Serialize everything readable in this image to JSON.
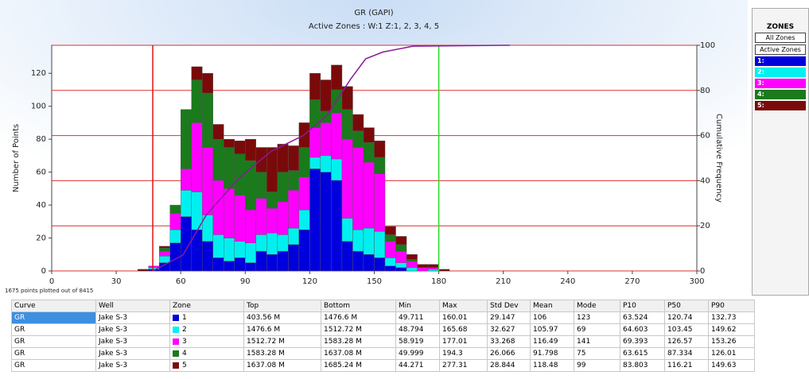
{
  "chart_data": {
    "type": "histogram",
    "title": "GR (GAPI)",
    "subtitle": "Active Zones :   W:1 Z:1, 2, 3, 4, 5",
    "y_label": "Number of Points",
    "y2_label": "Cumulative Frequency",
    "footnote": "1675 points plotted out of 8415",
    "bins": [
      40,
      45,
      50,
      55,
      60,
      65,
      70,
      75,
      80,
      85,
      90,
      95,
      100,
      105,
      110,
      115,
      120,
      125,
      130,
      135,
      140,
      145,
      150,
      155,
      160,
      165,
      170,
      175,
      180,
      185
    ],
    "series": [
      {
        "name": "1:",
        "color": "#0000dd",
        "values": [
          0,
          1,
          5,
          17,
          33,
          25,
          18,
          8,
          6,
          8,
          5,
          12,
          10,
          12,
          16,
          25,
          62,
          60,
          55,
          18,
          12,
          10,
          8,
          3,
          2,
          0,
          0,
          0,
          0
        ]
      },
      {
        "name": "2:",
        "color": "#00f0f0",
        "values": [
          0,
          1,
          4,
          8,
          16,
          23,
          16,
          14,
          14,
          10,
          12,
          10,
          13,
          10,
          10,
          12,
          7,
          10,
          13,
          14,
          13,
          16,
          16,
          5,
          3,
          2,
          0,
          1,
          0
        ]
      },
      {
        "name": "3:",
        "color": "#ff00ff",
        "values": [
          0,
          1,
          3,
          10,
          13,
          42,
          41,
          33,
          30,
          28,
          20,
          22,
          15,
          20,
          23,
          20,
          18,
          20,
          28,
          48,
          50,
          40,
          35,
          10,
          7,
          4,
          2,
          1,
          0
        ]
      },
      {
        "name": "4:",
        "color": "#1b7a1b",
        "values": [
          0,
          0,
          2,
          5,
          36,
          26,
          33,
          25,
          25,
          25,
          30,
          16,
          10,
          18,
          12,
          18,
          17,
          7,
          14,
          18,
          10,
          12,
          10,
          4,
          4,
          1,
          0,
          0,
          0
        ]
      },
      {
        "name": "5:",
        "color": "#7a0a0a",
        "values": [
          1,
          0,
          1,
          0,
          0,
          8,
          12,
          9,
          5,
          8,
          13,
          15,
          27,
          17,
          15,
          15,
          16,
          19,
          15,
          14,
          10,
          9,
          10,
          5,
          5,
          3,
          2,
          2,
          1
        ]
      }
    ],
    "cumulative": {
      "color": "#8b1a9b",
      "axis": "y2",
      "x": [
        47,
        61,
        72,
        87,
        102,
        117,
        128,
        139,
        146,
        154,
        168,
        213
      ],
      "values": [
        0,
        7,
        25,
        41,
        53,
        60,
        69,
        85,
        94,
        97,
        99.6,
        100
      ]
    },
    "cutoffs": [
      {
        "x": 47,
        "color": "#dd1111"
      },
      {
        "x": 180,
        "color": "#22dd22"
      }
    ],
    "xlim": [
      0,
      300
    ],
    "xticks": [
      0,
      30,
      60,
      90,
      120,
      150,
      180,
      210,
      240,
      270,
      300
    ],
    "ylim": [
      0,
      137
    ],
    "yticks": [
      0,
      20,
      40,
      60,
      80,
      100,
      120
    ],
    "y2lim": [
      0,
      100
    ],
    "y2ticks": [
      0,
      20,
      40,
      60,
      80,
      100
    ],
    "grid_color": "#e03030"
  },
  "zones_panel": {
    "title": "ZONES",
    "buttons": [
      "All Zones",
      "Active Zones"
    ]
  },
  "table": {
    "columns": [
      "Curve",
      "Well",
      "Zone",
      "Top",
      "Bottom",
      "Min",
      "Max",
      "Std Dev",
      "Mean",
      "Mode",
      "P10",
      "P50",
      "P90"
    ],
    "rows": [
      [
        "GR",
        "Jake S-3",
        "1",
        "403.56 M",
        "1476.6 M",
        "49.711",
        "160.01",
        "29.147",
        "106",
        "123",
        "63.524",
        "120.74",
        "132.73"
      ],
      [
        "GR",
        "Jake S-3",
        "2",
        "1476.6 M",
        "1512.72 M",
        "48.794",
        "165.68",
        "32.627",
        "105.97",
        "69",
        "64.603",
        "103.45",
        "149.62"
      ],
      [
        "GR",
        "Jake S-3",
        "3",
        "1512.72 M",
        "1583.28 M",
        "58.919",
        "177.01",
        "33.268",
        "116.49",
        "141",
        "69.393",
        "126.57",
        "153.26"
      ],
      [
        "GR",
        "Jake S-3",
        "4",
        "1583.28 M",
        "1637.08 M",
        "49.999",
        "194.3",
        "26.066",
        "91.798",
        "75",
        "63.615",
        "87.334",
        "126.01"
      ],
      [
        "GR",
        "Jake S-3",
        "5",
        "1637.08 M",
        "1685.24 M",
        "44.271",
        "277.31",
        "28.844",
        "118.48",
        "99",
        "83.803",
        "116.21",
        "149.63"
      ]
    ]
  }
}
